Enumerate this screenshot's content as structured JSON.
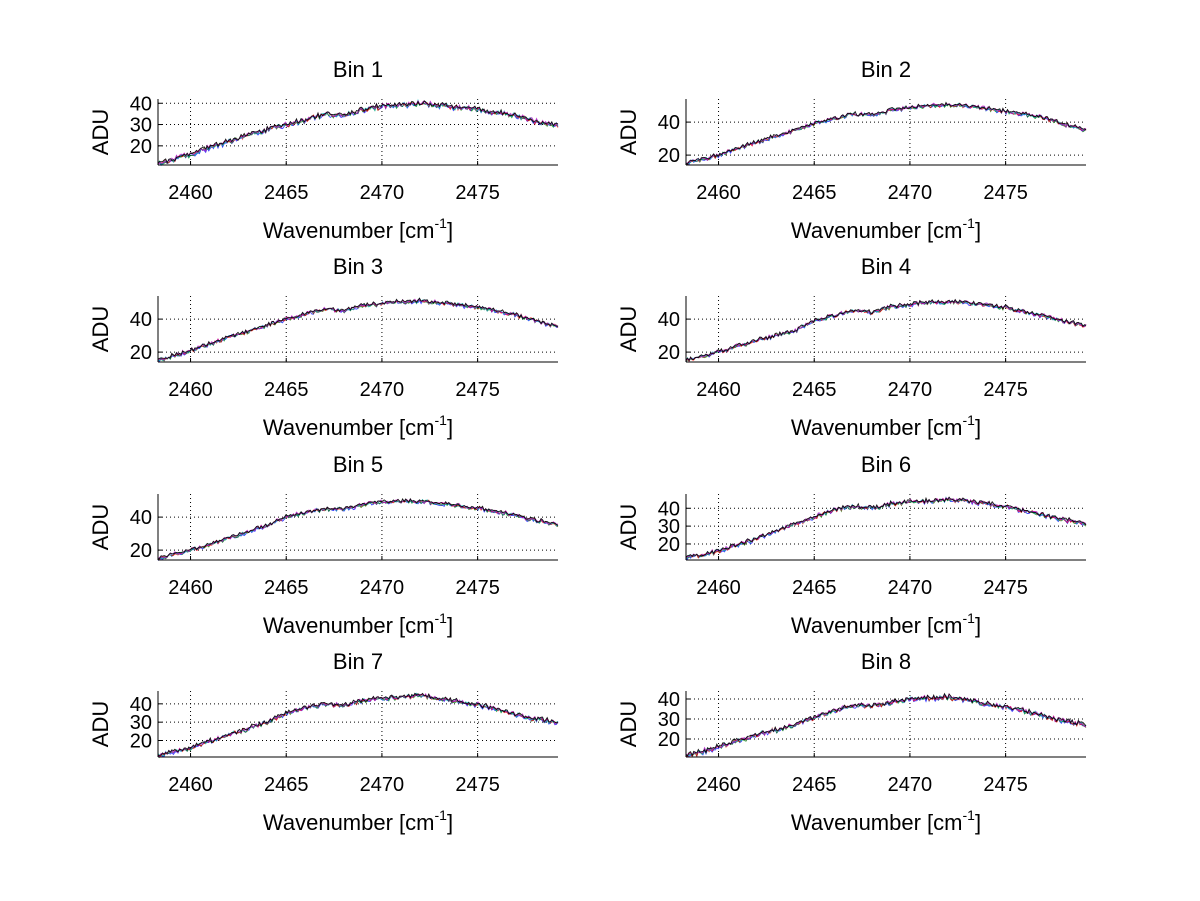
{
  "chart_data": [
    {
      "type": "line",
      "title": "Bin 1",
      "xlabel": "Wavenumber [cm",
      "xlabel_sup": "-1",
      "xlabel_end": "]",
      "ylabel": "ADU",
      "xlim": [
        2458.3,
        2479.2
      ],
      "ylim": [
        11,
        42
      ],
      "yticks": [
        20,
        30,
        40
      ],
      "xticks": [
        2460,
        2465,
        2470,
        2475
      ],
      "grid": true,
      "x": [
        2458.3,
        2460,
        2462,
        2464,
        2465,
        2466,
        2467,
        2468,
        2469,
        2470,
        2471,
        2472,
        2473,
        2474,
        2475,
        2476,
        2477,
        2478,
        2479.2
      ],
      "values": [
        11.5,
        16,
        22,
        27.5,
        30,
        32,
        35,
        34,
        37,
        38.5,
        39,
        40,
        39,
        38,
        37,
        35.5,
        34,
        31.5,
        29.5
      ],
      "series_colors": [
        "#0000ff",
        "#008000",
        "#ff0000",
        "#00bfbf",
        "#bf00bf",
        "#000000"
      ]
    },
    {
      "type": "line",
      "title": "Bin 2",
      "xlabel": "Wavenumber [cm",
      "xlabel_sup": "-1",
      "xlabel_end": "]",
      "ylabel": "ADU",
      "xlim": [
        2458.3,
        2479.2
      ],
      "ylim": [
        14,
        54
      ],
      "yticks": [
        20,
        40
      ],
      "xticks": [
        2460,
        2465,
        2470,
        2475
      ],
      "grid": true,
      "x": [
        2458.3,
        2460,
        2462,
        2464,
        2465,
        2466,
        2467,
        2468,
        2469,
        2470,
        2471,
        2472,
        2473,
        2474,
        2475,
        2476,
        2477,
        2478,
        2479.2
      ],
      "values": [
        15,
        20,
        28,
        35,
        39,
        42,
        45,
        44,
        47,
        49,
        50,
        50.5,
        49.5,
        48,
        46.5,
        45,
        42.5,
        39,
        35
      ],
      "series_colors": [
        "#0000ff",
        "#008000",
        "#ff0000",
        "#00bfbf",
        "#bf00bf",
        "#000000"
      ]
    },
    {
      "type": "line",
      "title": "Bin 3",
      "xlabel": "Wavenumber [cm",
      "xlabel_sup": "-1",
      "xlabel_end": "]",
      "ylabel": "ADU",
      "xlim": [
        2458.3,
        2479.2
      ],
      "ylim": [
        14,
        54
      ],
      "yticks": [
        20,
        40
      ],
      "xticks": [
        2460,
        2465,
        2470,
        2475
      ],
      "grid": true,
      "x": [
        2458.3,
        2460,
        2462,
        2464,
        2465,
        2466,
        2467,
        2468,
        2469,
        2470,
        2471,
        2472,
        2473,
        2474,
        2475,
        2476,
        2477,
        2478,
        2479.2
      ],
      "values": [
        15,
        21,
        29,
        36,
        40,
        43,
        46,
        45,
        48,
        49.5,
        50.5,
        51,
        50,
        48.5,
        47,
        45,
        42.5,
        39,
        35.5
      ],
      "series_colors": [
        "#0000ff",
        "#008000",
        "#ff0000",
        "#00bfbf",
        "#bf00bf",
        "#000000"
      ]
    },
    {
      "type": "line",
      "title": "Bin 4",
      "xlabel": "Wavenumber [cm",
      "xlabel_sup": "-1",
      "xlabel_end": "]",
      "ylabel": "ADU",
      "xlim": [
        2458.3,
        2479.2
      ],
      "ylim": [
        14,
        54
      ],
      "yticks": [
        20,
        40
      ],
      "xticks": [
        2460,
        2465,
        2470,
        2475
      ],
      "grid": true,
      "x": [
        2458.3,
        2460,
        2462,
        2464,
        2465,
        2466,
        2467,
        2468,
        2469,
        2470,
        2471,
        2472,
        2473,
        2474,
        2475,
        2476,
        2477,
        2478,
        2479.2
      ],
      "values": [
        15,
        20,
        27,
        33,
        39,
        42,
        45,
        44,
        47.5,
        49,
        50,
        50.5,
        50,
        48.5,
        47,
        44.5,
        42,
        39,
        35.5
      ],
      "series_colors": [
        "#0000ff",
        "#008000",
        "#ff0000",
        "#00bfbf",
        "#bf00bf",
        "#000000"
      ]
    },
    {
      "type": "line",
      "title": "Bin 5",
      "xlabel": "Wavenumber [cm",
      "xlabel_sup": "-1",
      "xlabel_end": "]",
      "ylabel": "ADU",
      "xlim": [
        2458.3,
        2479.2
      ],
      "ylim": [
        14,
        54
      ],
      "yticks": [
        20,
        40
      ],
      "xticks": [
        2460,
        2465,
        2470,
        2475
      ],
      "grid": true,
      "x": [
        2458.3,
        2460,
        2462,
        2464,
        2465,
        2466,
        2467,
        2468,
        2469,
        2470,
        2471,
        2472,
        2473,
        2474,
        2475,
        2476,
        2477,
        2478,
        2479.2
      ],
      "values": [
        15,
        20,
        27,
        35,
        40,
        43,
        45,
        45,
        47.5,
        49,
        49.5,
        49.5,
        48.5,
        47,
        45.5,
        43.5,
        41,
        38,
        35
      ],
      "series_colors": [
        "#0000ff",
        "#008000",
        "#ff0000",
        "#00bfbf",
        "#bf00bf",
        "#000000"
      ]
    },
    {
      "type": "line",
      "title": "Bin 6",
      "xlabel": "Wavenumber [cm",
      "xlabel_sup": "-1",
      "xlabel_end": "]",
      "ylabel": "ADU",
      "xlim": [
        2458.3,
        2479.2
      ],
      "ylim": [
        11,
        48
      ],
      "yticks": [
        20,
        30,
        40
      ],
      "xticks": [
        2460,
        2465,
        2470,
        2475
      ],
      "grid": true,
      "x": [
        2458.3,
        2460,
        2462,
        2464,
        2465,
        2466,
        2467,
        2468,
        2469,
        2470,
        2471,
        2472,
        2473,
        2474,
        2475,
        2476,
        2477,
        2478,
        2479.2
      ],
      "values": [
        12,
        16,
        23,
        31,
        35,
        39,
        41,
        40,
        42.5,
        43.5,
        44,
        45,
        44,
        42.5,
        41,
        38.5,
        36,
        33.5,
        31.5
      ],
      "series_colors": [
        "#0000ff",
        "#008000",
        "#ff0000",
        "#00bfbf",
        "#bf00bf",
        "#000000"
      ]
    },
    {
      "type": "line",
      "title": "Bin 7",
      "xlabel": "Wavenumber [cm",
      "xlabel_sup": "-1",
      "xlabel_end": "]",
      "ylabel": "ADU",
      "xlim": [
        2458.3,
        2479.2
      ],
      "ylim": [
        11,
        47
      ],
      "yticks": [
        20,
        30,
        40
      ],
      "xticks": [
        2460,
        2465,
        2470,
        2475
      ],
      "grid": true,
      "x": [
        2458.3,
        2460,
        2462,
        2464,
        2465,
        2466,
        2467,
        2468,
        2469,
        2470,
        2471,
        2472,
        2473,
        2474,
        2475,
        2476,
        2477,
        2478,
        2479.2
      ],
      "values": [
        12,
        16,
        23,
        30,
        35,
        38,
        40,
        39,
        42,
        43,
        43.5,
        44.5,
        43,
        41,
        39.5,
        37,
        34,
        31.5,
        30
      ],
      "series_colors": [
        "#0000ff",
        "#008000",
        "#ff0000",
        "#00bfbf",
        "#bf00bf",
        "#000000"
      ]
    },
    {
      "type": "line",
      "title": "Bin 8",
      "xlabel": "Wavenumber [cm",
      "xlabel_sup": "-1",
      "xlabel_end": "]",
      "ylabel": "ADU",
      "xlim": [
        2458.3,
        2479.2
      ],
      "ylim": [
        11,
        44
      ],
      "yticks": [
        20,
        30,
        40
      ],
      "xticks": [
        2460,
        2465,
        2470,
        2475
      ],
      "grid": true,
      "x": [
        2458.3,
        2460,
        2462,
        2464,
        2465,
        2466,
        2467,
        2468,
        2469,
        2470,
        2471,
        2472,
        2473,
        2474,
        2475,
        2476,
        2477,
        2478,
        2479.2
      ],
      "values": [
        11.5,
        16,
        22,
        27,
        31,
        34,
        37,
        36,
        38.5,
        40,
        40.5,
        41,
        39.5,
        37.5,
        36,
        34,
        31.5,
        29,
        27
      ],
      "series_colors": [
        "#0000ff",
        "#008000",
        "#ff0000",
        "#00bfbf",
        "#bf00bf",
        "#000000"
      ]
    }
  ]
}
